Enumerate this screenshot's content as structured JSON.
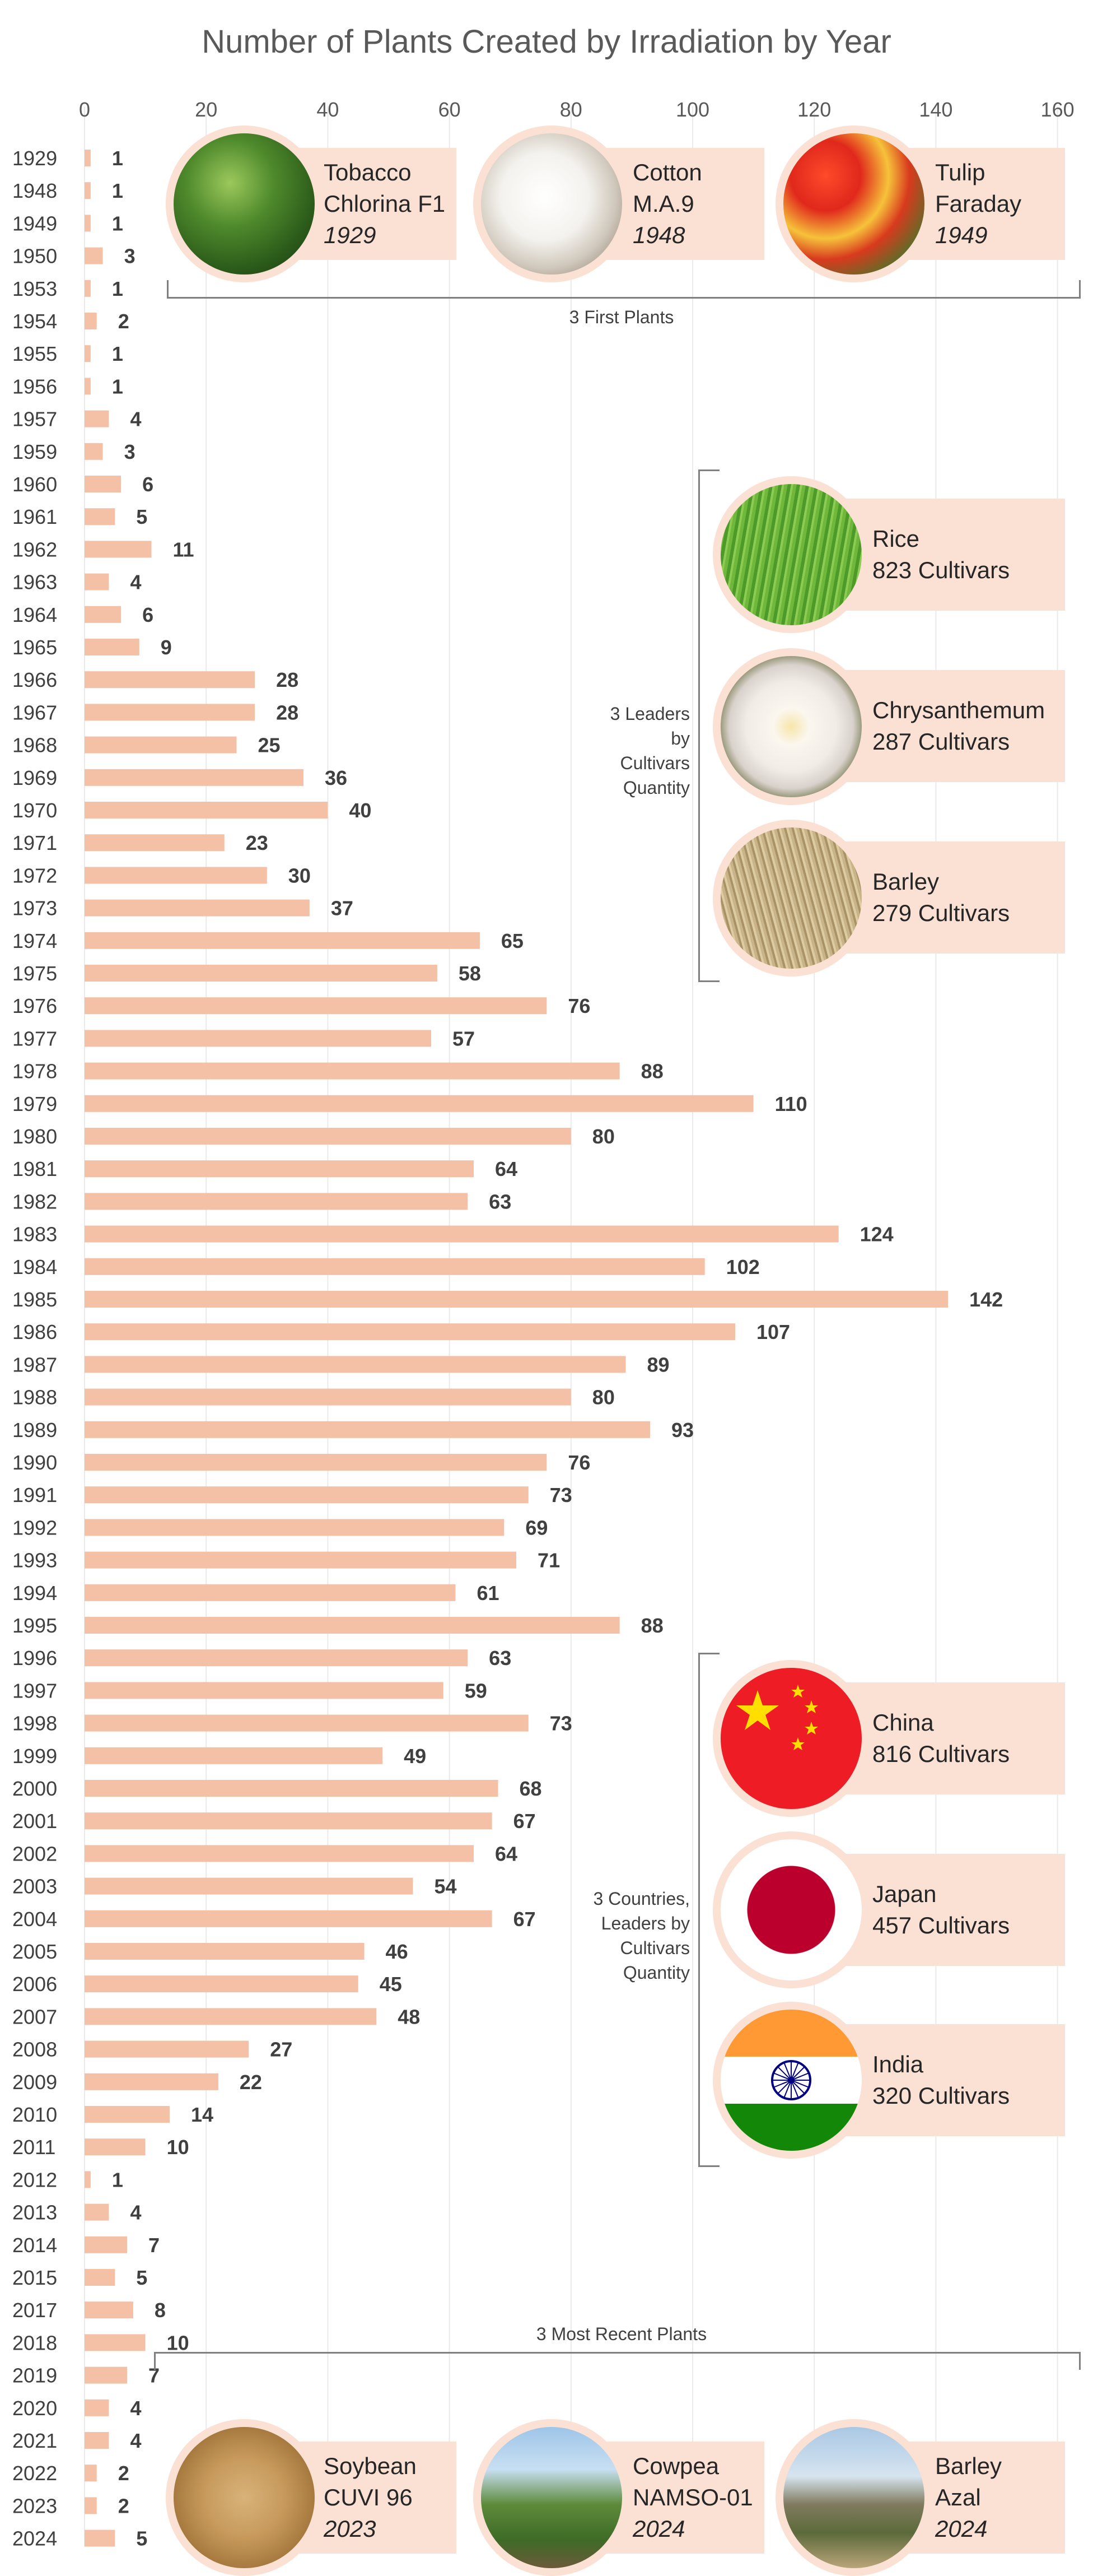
{
  "chart_data": {
    "type": "bar",
    "orientation": "horizontal",
    "title": "Number of Plants Created by Irradiation by Year",
    "xlim": [
      0,
      160
    ],
    "xticks": [
      0,
      20,
      40,
      60,
      80,
      100,
      120,
      140,
      160
    ],
    "grid": true,
    "bar_color": "#f4c0a6",
    "categories": [
      "1929",
      "1948",
      "1949",
      "1950",
      "1953",
      "1954",
      "1955",
      "1956",
      "1957",
      "1959",
      "1960",
      "1961",
      "1962",
      "1963",
      "1964",
      "1965",
      "1966",
      "1967",
      "1968",
      "1969",
      "1970",
      "1971",
      "1972",
      "1973",
      "1974",
      "1975",
      "1976",
      "1977",
      "1978",
      "1979",
      "1980",
      "1981",
      "1982",
      "1983",
      "1984",
      "1985",
      "1986",
      "1987",
      "1988",
      "1989",
      "1990",
      "1991",
      "1992",
      "1993",
      "1994",
      "1995",
      "1996",
      "1997",
      "1998",
      "1999",
      "2000",
      "2001",
      "2002",
      "2003",
      "2004",
      "2005",
      "2006",
      "2007",
      "2008",
      "2009",
      "2010",
      "2011",
      "2012",
      "2013",
      "2014",
      "2015",
      "2017",
      "2018",
      "2019",
      "2020",
      "2021",
      "2022",
      "2023",
      "2024"
    ],
    "values": [
      1,
      1,
      1,
      3,
      1,
      2,
      1,
      1,
      4,
      3,
      6,
      5,
      11,
      4,
      6,
      9,
      28,
      28,
      25,
      36,
      40,
      23,
      30,
      37,
      65,
      58,
      76,
      57,
      88,
      110,
      80,
      64,
      63,
      124,
      102,
      142,
      107,
      89,
      80,
      93,
      76,
      73,
      69,
      71,
      61,
      88,
      63,
      59,
      73,
      49,
      68,
      67,
      64,
      54,
      67,
      46,
      45,
      48,
      27,
      22,
      14,
      10,
      1,
      4,
      7,
      5,
      8,
      10,
      7,
      4,
      4,
      2,
      2,
      5
    ]
  },
  "annotations": {
    "first_plants": {
      "label": "3 First Plants",
      "items": [
        {
          "line1": "Tobacco",
          "line2": "Chlorina F1",
          "year": "1929",
          "icon": "tobacco-leaf-photo"
        },
        {
          "line1": "Cotton",
          "line2": "M.A.9",
          "year": "1948",
          "icon": "cotton-boll-photo"
        },
        {
          "line1": "Tulip",
          "line2": "Faraday",
          "year": "1949",
          "icon": "tulip-field-photo"
        }
      ]
    },
    "leaders": {
      "label_lines": [
        "3 Leaders",
        "by",
        "Cultivars",
        "Quantity"
      ],
      "items": [
        {
          "name": "Rice",
          "count": "823 Cultivars",
          "icon": "rice-field-photo"
        },
        {
          "name": "Chrysanthemum",
          "count": "287 Cultivars",
          "icon": "chrysanthemum-photo"
        },
        {
          "name": "Barley",
          "count": "279 Cultivars",
          "icon": "barley-field-photo"
        }
      ]
    },
    "countries": {
      "label_lines": [
        "3 Countries,",
        "Leaders by",
        "Cultivars",
        "Quantity"
      ],
      "items": [
        {
          "name": "China",
          "count": "816 Cultivars",
          "icon": "china-flag-icon"
        },
        {
          "name": "Japan",
          "count": "457 Cultivars",
          "icon": "japan-flag-icon"
        },
        {
          "name": "India",
          "count": "320 Cultivars",
          "icon": "india-flag-icon"
        }
      ]
    },
    "recent_plants": {
      "label": "3 Most Recent Plants",
      "items": [
        {
          "line1": "Soybean",
          "line2": "CUVI 96",
          "year": "2023",
          "icon": "soybean-seeds-photo"
        },
        {
          "line1": "Cowpea",
          "line2": "NAMSO-01",
          "year": "2024",
          "icon": "cowpea-plants-photo"
        },
        {
          "line1": "Barley",
          "line2": "Azal",
          "year": "2024",
          "icon": "barley-field-people-photo"
        }
      ]
    }
  },
  "colors": {
    "bar": "#f4c0a6",
    "callout_fill": "#fbe1d4",
    "text": "#404040",
    "title": "#595959"
  }
}
